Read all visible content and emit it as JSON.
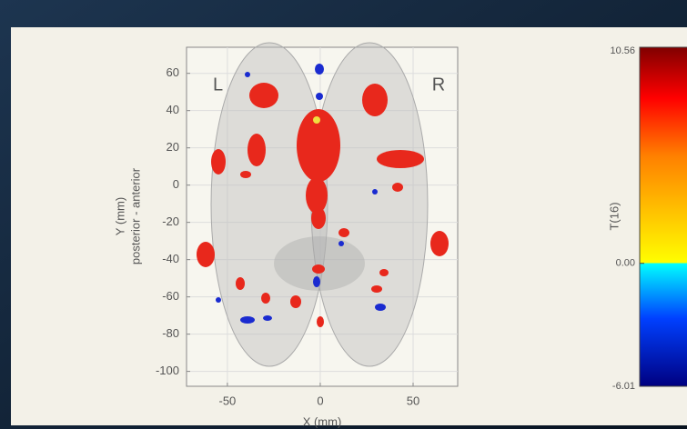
{
  "chart_data": {
    "type": "brain-map",
    "xlabel": "X (mm)",
    "ylabel": "Y (mm)",
    "ylabel2": "posterior - anterior",
    "xlim": [
      -72,
      74
    ],
    "xticks": [
      -50,
      0,
      50
    ],
    "ylim": [
      -108,
      74
    ],
    "yticks": [
      -100,
      -80,
      -60,
      -40,
      -20,
      0,
      20,
      40,
      60
    ],
    "grid": true,
    "annotations": [
      "L",
      "R"
    ],
    "colorbar": {
      "label": "T(16)",
      "lim": [
        -6.01,
        10.56
      ],
      "ticks": [
        {
          "value": 10.56,
          "label": "10.56"
        },
        {
          "value": 0,
          "label": "0.00"
        },
        {
          "value": -6.01,
          "label": "-6.01"
        }
      ]
    }
  }
}
